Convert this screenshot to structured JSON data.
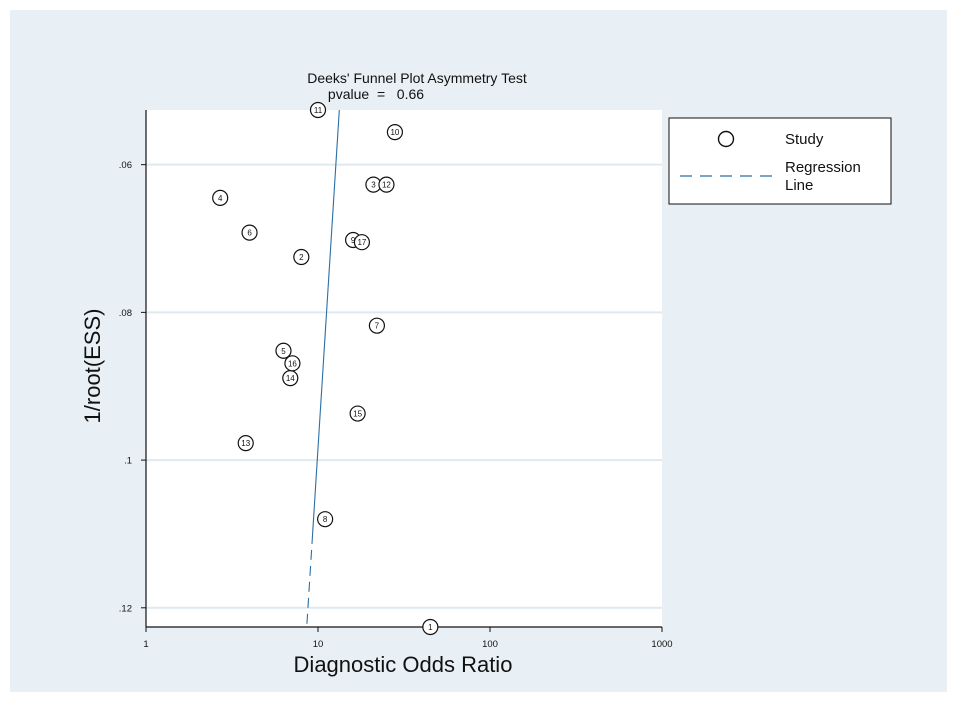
{
  "colors": {
    "outer_background": "#e8f0f5",
    "plot_background": "#ffffff",
    "gridline": "#dfe9f0",
    "regression_line": "#2c6fa3",
    "axis": "#111111"
  },
  "chart_data": {
    "type": "scatter",
    "title": "Deeks' Funnel Plot Asymmetry Test",
    "subtitle": "pvalue  =   0.66",
    "xlabel": "Diagnostic Odds Ratio",
    "ylabel": "1/root(ESS)",
    "x_scale": "log",
    "x_ticks": [
      1,
      10,
      100,
      1000
    ],
    "x_tick_labels": [
      "1",
      "10",
      "100",
      "1000"
    ],
    "xlim": [
      1,
      1000
    ],
    "y_reversed": true,
    "y_ticks": [
      0.06,
      0.08,
      0.1,
      0.12
    ],
    "y_tick_labels": [
      ".06",
      ".08",
      ".1",
      ".12"
    ],
    "ylim": [
      0.0526,
      0.1226
    ],
    "grid": true,
    "legend_position": "right",
    "legend": {
      "study_label": "Study",
      "regression_label_line1": "Regression",
      "regression_label_line2": "Line"
    },
    "studies": [
      {
        "id": "1",
        "x": 45,
        "y": 0.1226
      },
      {
        "id": "2",
        "x": 8.0,
        "y": 0.0725
      },
      {
        "id": "3",
        "x": 21,
        "y": 0.0627
      },
      {
        "id": "4",
        "x": 2.7,
        "y": 0.0645
      },
      {
        "id": "5",
        "x": 6.3,
        "y": 0.0852
      },
      {
        "id": "6",
        "x": 4.0,
        "y": 0.0692
      },
      {
        "id": "7",
        "x": 22,
        "y": 0.0818
      },
      {
        "id": "8",
        "x": 11,
        "y": 0.108
      },
      {
        "id": "9",
        "x": 16,
        "y": 0.0702
      },
      {
        "id": "10",
        "x": 28,
        "y": 0.0556
      },
      {
        "id": "11",
        "x": 10,
        "y": 0.0526
      },
      {
        "id": "12",
        "x": 25,
        "y": 0.0627
      },
      {
        "id": "13",
        "x": 3.8,
        "y": 0.0977
      },
      {
        "id": "14",
        "x": 6.9,
        "y": 0.0889
      },
      {
        "id": "15",
        "x": 17,
        "y": 0.0937
      },
      {
        "id": "16",
        "x": 7.1,
        "y": 0.0869
      },
      {
        "id": "17",
        "x": 18,
        "y": 0.0705
      }
    ],
    "regression_line": {
      "points": [
        {
          "x": 13.3,
          "y": 0.0526
        },
        {
          "x": 8.6,
          "y": 0.1226
        }
      ]
    }
  }
}
